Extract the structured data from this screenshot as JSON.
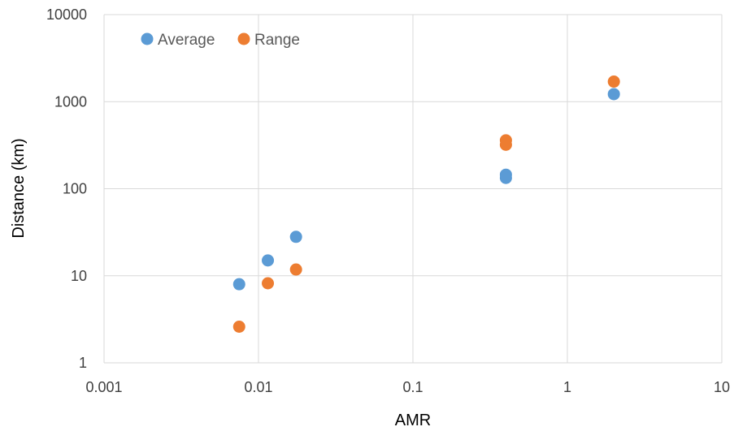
{
  "chart_data": {
    "type": "scatter",
    "xlabel": "AMR",
    "ylabel": "Distance (km)",
    "xscale": "log",
    "yscale": "log",
    "xlim": [
      0.001,
      10
    ],
    "ylim": [
      1,
      10000
    ],
    "x_ticks": [
      "0.001",
      "0.01",
      "0.1",
      "1",
      "10"
    ],
    "y_ticks": [
      "1",
      "10",
      "100",
      "1000",
      "10000"
    ],
    "grid": true,
    "legend_position": "top-left",
    "series": [
      {
        "name": "Average",
        "color": "#5b9bd5",
        "points": [
          {
            "x": 0.0075,
            "y": 8
          },
          {
            "x": 0.0115,
            "y": 15
          },
          {
            "x": 0.0175,
            "y": 28
          },
          {
            "x": 0.4,
            "y": 145
          },
          {
            "x": 0.4,
            "y": 133
          },
          {
            "x": 2.0,
            "y": 1220
          }
        ]
      },
      {
        "name": "Range",
        "color": "#ed7d31",
        "points": [
          {
            "x": 0.0075,
            "y": 2.6
          },
          {
            "x": 0.0115,
            "y": 8.2
          },
          {
            "x": 0.0175,
            "y": 11.8
          },
          {
            "x": 0.4,
            "y": 360
          },
          {
            "x": 0.4,
            "y": 320
          },
          {
            "x": 2.0,
            "y": 1700
          }
        ]
      }
    ]
  }
}
